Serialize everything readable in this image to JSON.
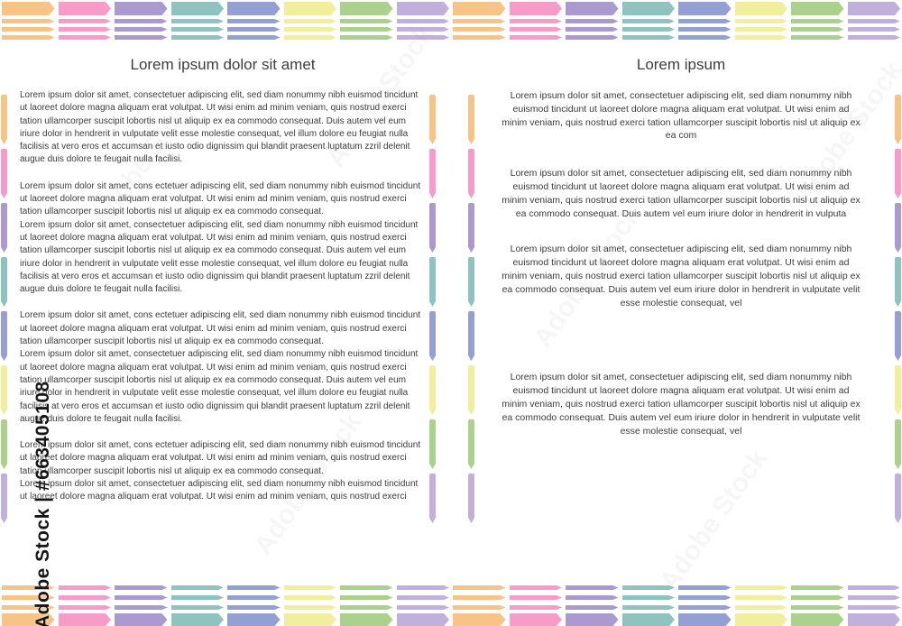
{
  "decoration": {
    "arrow_colors": [
      "#F7C386",
      "#F79CC9",
      "#AB9AD0",
      "#8FC3BF",
      "#94A0D3",
      "#F1EF9D",
      "#ABD28D",
      "#C1B0DB"
    ],
    "arrows_per_row": 16,
    "side_segments": 8
  },
  "watermark": {
    "side_text": "Adobe Stock | #663405108",
    "diagonal_text": "Adobe Stock"
  },
  "left_page": {
    "title": "Lorem ipsum dolor sit amet",
    "paragraphs": [
      "Lorem ipsum dolor sit amet, consectetuer adipiscing elit, sed diam nonummy nibh euismod tincidunt ut laoreet dolore magna aliquam erat volutpat. Ut wisi enim ad minim veniam, quis nostrud exerci tation ullamcorper suscipit lobortis nisl ut aliquip ex ea commodo consequat. Duis autem vel eum iriure dolor in hendrerit in vulputate velit esse molestie consequat, vel illum dolore eu feugiat nulla facilisis at vero eros et accumsan et iusto odio dignissim qui blandit praesent luptatum zzril delenit augue duis dolore te feugait nulla facilisi.",
      "Lorem ipsum dolor sit amet, cons ectetuer adipiscing elit, sed diam nonummy nibh euismod tincidunt ut laoreet dolore magna aliquam erat volutpat. Ut wisi enim ad minim veniam, quis nostrud exerci tation ullamcorper suscipit lobortis nisl ut aliquip ex ea commodo consequat.",
      "Lorem ipsum dolor sit amet, consectetuer adipiscing elit, sed diam nonummy nibh euismod tincidunt ut laoreet dolore magna aliquam erat volutpat. Ut wisi enim ad minim veniam, quis nostrud exerci tation ullamcorper suscipit lobortis nisl ut aliquip ex ea commodo consequat. Duis autem vel eum iriure dolor in hendrerit in vulputate velit esse molestie consequat, vel illum dolore eu feugiat nulla facilisis at vero eros et accumsan et iusto odio dignissim qui blandit praesent luptatum zzril delenit augue duis dolore te feugait nulla facilisi.",
      "Lorem ipsum dolor sit amet, cons ectetuer adipiscing elit, sed diam nonummy nibh euismod tincidunt ut laoreet dolore magna aliquam erat volutpat. Ut wisi enim ad minim veniam, quis nostrud exerci tation ullamcorper suscipit lobortis nisl ut aliquip ex ea commodo consequat.",
      "Lorem ipsum dolor sit amet, consectetuer adipiscing elit, sed diam nonummy nibh euismod tincidunt ut laoreet dolore magna aliquam erat volutpat. Ut wisi enim ad minim veniam, quis nostrud exerci tation ullamcorper suscipit lobortis nisl ut aliquip ex ea commodo consequat. Duis autem vel eum iriure dolor in hendrerit in vulputate velit esse molestie consequat, vel illum dolore eu feugiat nulla facilisis at vero eros et accumsan et iusto odio dignissim qui blandit praesent luptatum zzril delenit augue duis dolore te feugait nulla facilisi.",
      "Lorem ipsum dolor sit amet, cons ectetuer adipiscing elit, sed diam nonummy nibh euismod tincidunt ut laoreet dolore magna aliquam erat volutpat. Ut wisi enim ad minim veniam, quis nostrud exerci tation ullamcorper suscipit lobortis nisl ut aliquip ex ea commodo consequat.",
      "Lorem ipsum dolor sit amet, consectetuer adipiscing elit, sed diam nonummy nibh euismod tincidunt ut laoreet dolore magna aliquam erat volutpat. Ut wisi enim ad minim veniam, quis nostrud exerci"
    ]
  },
  "right_page": {
    "title": "Lorem ipsum",
    "paragraphs": [
      "Lorem ipsum dolor sit amet, consectetuer adipiscing elit, sed diam nonummy nibh euismod tincidunt ut laoreet dolore magna aliquam erat volutpat. Ut wisi enim ad minim veniam, quis nostrud exerci tation ullamcorper suscipit lobortis nisl ut aliquip ex ea com",
      "Lorem ipsum dolor sit amet, consectetuer adipiscing elit, sed diam nonummy nibh euismod tincidunt ut laoreet dolore magna aliquam erat volutpat. Ut wisi enim ad minim veniam, quis nostrud exerci tation ullamcorper suscipit lobortis nisl ut aliquip ex ea commodo consequat. Duis autem vel eum iriure dolor in hendrerit in vulputa",
      "Lorem ipsum dolor sit amet, consectetuer adipiscing elit, sed diam nonummy nibh euismod tincidunt ut laoreet dolore magna aliquam erat volutpat. Ut wisi enim ad minim veniam, quis nostrud exerci tation ullamcorper suscipit lobortis nisl ut aliquip ex ea commodo consequat. Duis autem vel eum iriure dolor in hendrerit in vulputate velit esse molestie consequat, vel",
      "Lorem ipsum dolor sit amet, consectetuer adipiscing elit, sed diam nonummy nibh euismod tincidunt ut laoreet dolore magna aliquam erat volutpat. Ut wisi enim ad minim veniam, quis nostrud exerci tation ullamcorper suscipit lobortis nisl ut aliquip ex ea commodo consequat. Duis autem vel eum iriure dolor in hendrerit in vulputate velit esse molestie consequat, vel"
    ]
  }
}
